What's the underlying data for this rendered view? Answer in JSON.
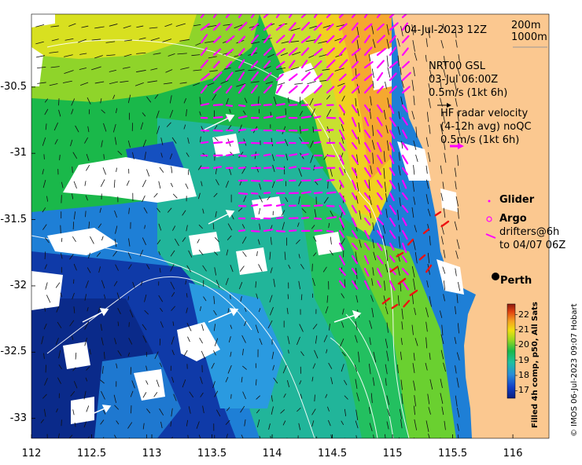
{
  "map": {
    "date_label": "04-Jul-2023 12Z",
    "contours": [
      "200m",
      "1000m"
    ],
    "gsl_lines": [
      "NRT00 GSL",
      "03-Jul 06:00Z",
      "0.5m/s (1kt 6h)"
    ],
    "hf_lines": [
      "HF radar velocity",
      "(4-12h avg) noQC",
      "0.5m/s (1kt 6h)"
    ],
    "legend": {
      "glider": "Glider",
      "argo": "Argo",
      "drifters": [
        "drifters@6h",
        "to 04/07 06Z"
      ]
    },
    "city": "Perth",
    "credit": "© IMOS 06-Jul-2023 09:07 Hobart",
    "colorbar_title": "Filled 4h comp, p50, All Sats",
    "colorbar_ticks": [
      "22",
      "21",
      "20",
      "19",
      "18",
      "17"
    ],
    "colorbar_range": [
      16.5,
      22.7
    ],
    "x_ticks": [
      "112",
      "112.5",
      "113",
      "113.5",
      "114",
      "114.5",
      "115",
      "115.5",
      "116"
    ],
    "y_ticks": [
      "-30.5",
      "-31",
      "-31.5",
      "-32",
      "-32.5",
      "-33"
    ],
    "lon_range": [
      112,
      116.3
    ],
    "lat_range": [
      -33.15,
      -29.95
    ],
    "colors": {
      "land": "#fbc890",
      "hf_vectors": "#ff00ff",
      "drifters": "#ee1111",
      "sst_cold": "#0a2a9a",
      "sst_mid": "#1ab85a",
      "sst_warm": "#f5a020"
    }
  }
}
